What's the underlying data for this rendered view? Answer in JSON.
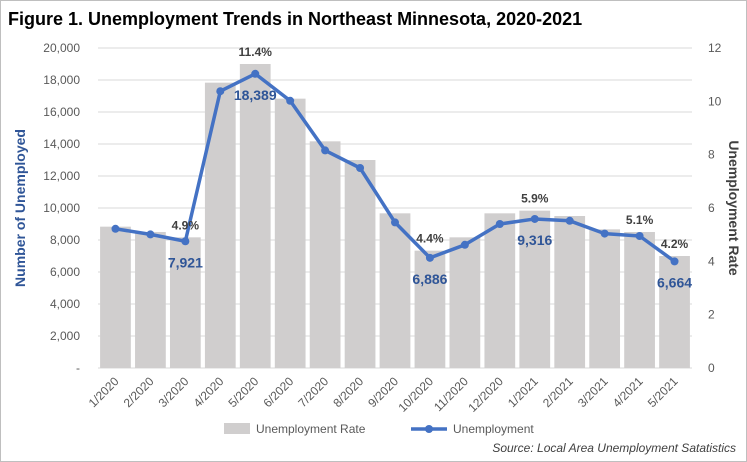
{
  "chart_data": {
    "type": "bar",
    "title": "Figure 1. Unemployment Trends in Northeast Minnesota, 2020-2021",
    "categories": [
      "1/2020",
      "2/2020",
      "3/2020",
      "4/2020",
      "5/2020",
      "6/2020",
      "7/2020",
      "8/2020",
      "9/2020",
      "10/2020",
      "11/2020",
      "12/2020",
      "1/2021",
      "2/2021",
      "3/2021",
      "4/2021",
      "5/2021"
    ],
    "series": [
      {
        "name": "Unemployment Rate",
        "type": "bar",
        "axis": "right",
        "color": "#d0cece",
        "values": [
          5.3,
          5.1,
          4.9,
          10.7,
          11.4,
          10.1,
          8.5,
          7.8,
          5.8,
          4.4,
          4.9,
          5.8,
          5.9,
          5.7,
          5.2,
          5.1,
          4.2
        ]
      },
      {
        "name": "Unemployment",
        "type": "line",
        "axis": "left",
        "color": "#4472c4",
        "values": [
          8700,
          8350,
          7921,
          17300,
          18389,
          16700,
          13600,
          12500,
          9100,
          6886,
          7700,
          9000,
          9316,
          9200,
          8400,
          8250,
          6664
        ]
      }
    ],
    "ylabel": "Number of Unemployed",
    "y2label": "Unemployment Rate",
    "ylim": [
      0,
      20000
    ],
    "y2lim": [
      0,
      12
    ],
    "yticks": [
      "-",
      "2,000",
      "4,000",
      "6,000",
      "8,000",
      "10,000",
      "12,000",
      "14,000",
      "16,000",
      "18,000",
      "20,000"
    ],
    "y2ticks": [
      "0",
      "2",
      "4",
      "6",
      "8",
      "10",
      "12"
    ],
    "grid": true,
    "legend_position": "bottom",
    "rate_labels": [
      {
        "index": 2,
        "text": "4.9%"
      },
      {
        "index": 4,
        "text": "11.4%"
      },
      {
        "index": 9,
        "text": "4.4%"
      },
      {
        "index": 12,
        "text": "5.9%"
      },
      {
        "index": 15,
        "text": "5.1%"
      },
      {
        "index": 16,
        "text": "4.2%"
      }
    ],
    "count_labels": [
      {
        "index": 2,
        "text": "7,921"
      },
      {
        "index": 4,
        "text": "18,389"
      },
      {
        "index": 9,
        "text": "6,886"
      },
      {
        "index": 12,
        "text": "9,316"
      },
      {
        "index": 16,
        "text": "6,664"
      }
    ],
    "source": "Source: Local Area Unemployment Satatistics"
  }
}
